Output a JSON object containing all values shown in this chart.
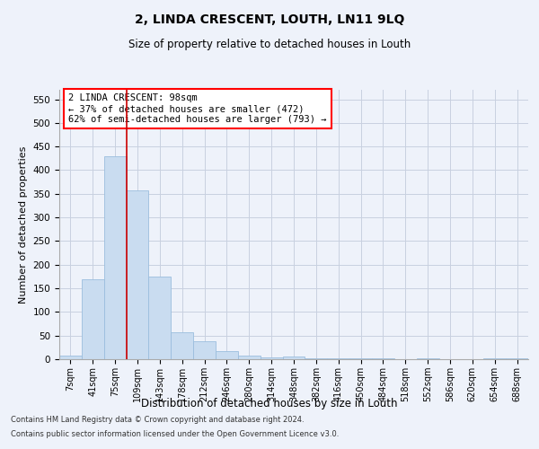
{
  "title": "2, LINDA CRESCENT, LOUTH, LN11 9LQ",
  "subtitle": "Size of property relative to detached houses in Louth",
  "xlabel": "Distribution of detached houses by size in Louth",
  "ylabel": "Number of detached properties",
  "footnote1": "Contains HM Land Registry data © Crown copyright and database right 2024.",
  "footnote2": "Contains public sector information licensed under the Open Government Licence v3.0.",
  "categories": [
    "7sqm",
    "41sqm",
    "75sqm",
    "109sqm",
    "143sqm",
    "178sqm",
    "212sqm",
    "246sqm",
    "280sqm",
    "314sqm",
    "348sqm",
    "382sqm",
    "416sqm",
    "450sqm",
    "484sqm",
    "518sqm",
    "552sqm",
    "586sqm",
    "620sqm",
    "654sqm",
    "688sqm"
  ],
  "values": [
    8,
    170,
    430,
    357,
    175,
    57,
    38,
    18,
    8,
    4,
    5,
    1,
    1,
    2,
    1,
    0,
    1,
    0,
    0,
    1,
    2
  ],
  "bar_color": "#c9dcf0",
  "bar_edge_color": "#9bbede",
  "ylim": [
    0,
    570
  ],
  "yticks": [
    0,
    50,
    100,
    150,
    200,
    250,
    300,
    350,
    400,
    450,
    500,
    550
  ],
  "annotation_box_text1": "2 LINDA CRESCENT: 98sqm",
  "annotation_box_text2": "← 37% of detached houses are smaller (472)",
  "annotation_box_text3": "62% of semi-detached houses are larger (793) →",
  "annotation_box_color": "white",
  "annotation_box_edge_color": "red",
  "red_line_color": "#cc0000",
  "grid_color": "#c8d0e0",
  "background_color": "#eef2fa"
}
